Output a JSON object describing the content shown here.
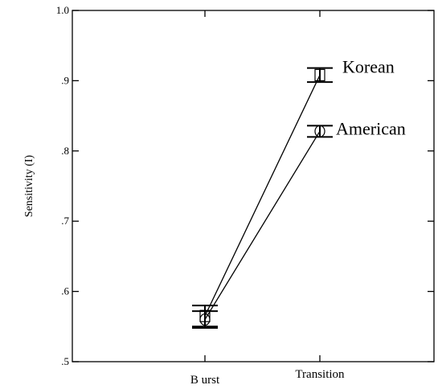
{
  "chart_data": {
    "type": "line",
    "title": "",
    "xlabel": "",
    "ylabel": "Sensitivity (I)",
    "categories": [
      "B urst",
      "Transition"
    ],
    "ylim": [
      0.5,
      1.0
    ],
    "yticks": [
      ".5",
      ".6",
      ".7",
      ".8",
      ".9",
      "1.0"
    ],
    "ytick_values": [
      0.5,
      0.6,
      0.7,
      0.8,
      0.9,
      1.0
    ],
    "grid": false,
    "legend": "inline labels at line ends",
    "series": [
      {
        "name": "Korean",
        "marker": "square",
        "values": [
          0.565,
          0.908
        ],
        "errors": [
          0.015,
          0.01
        ]
      },
      {
        "name": "American",
        "marker": "circle",
        "values": [
          0.56,
          0.828
        ],
        "errors": [
          0.012,
          0.008
        ]
      }
    ]
  }
}
